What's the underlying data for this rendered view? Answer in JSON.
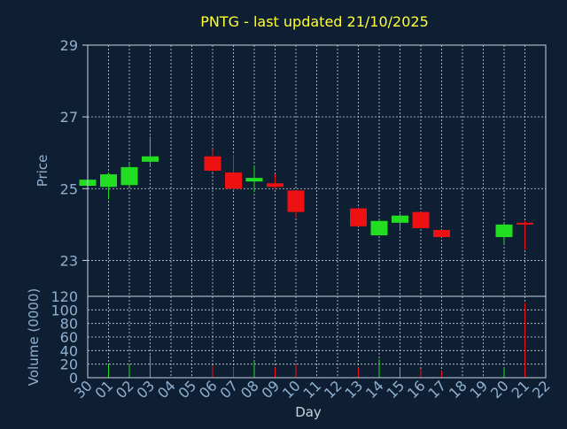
{
  "chart_data": {
    "type": "candlestick",
    "title": "PNTG - last updated 21/10/2025",
    "xlabel": "Day",
    "price_ylabel": "Price",
    "volume_ylabel": "Volume (0000)",
    "x_ticks": [
      "30",
      "01",
      "02",
      "03",
      "04",
      "05",
      "06",
      "07",
      "08",
      "09",
      "10",
      "11",
      "12",
      "13",
      "14",
      "15",
      "16",
      "17",
      "18",
      "19",
      "20",
      "21",
      "22"
    ],
    "price_yticks": [
      23,
      25,
      27,
      29
    ],
    "price_ylim": [
      22,
      29
    ],
    "volume_yticks": [
      0,
      20,
      40,
      60,
      80,
      100,
      120
    ],
    "volume_ylim": [
      0,
      120
    ],
    "grid": true,
    "colors": {
      "background": "#0f1f33",
      "axis": "#c8d3de",
      "tick_label": "#8fb0cf",
      "title": "#ffff33",
      "grid": "#c8d3de",
      "up": "#22dd22",
      "down": "#ee1111"
    },
    "candles": [
      {
        "x": "30",
        "open": 25.08,
        "close": 25.25,
        "high": 25.28,
        "low": 25.05,
        "volume": 0
      },
      {
        "x": "01",
        "open": 25.05,
        "close": 25.4,
        "high": 25.45,
        "low": 24.7,
        "volume": 20
      },
      {
        "x": "02",
        "open": 25.1,
        "close": 25.6,
        "high": 25.72,
        "low": 25.05,
        "volume": 20
      },
      {
        "x": "03",
        "open": 25.75,
        "close": 25.9,
        "high": 26.45,
        "low": 25.6,
        "volume": 33
      },
      {
        "x": "06",
        "open": 25.9,
        "close": 25.5,
        "high": 26.1,
        "low": 25.45,
        "volume": 18
      },
      {
        "x": "07",
        "open": 25.45,
        "close": 25.0,
        "high": 25.95,
        "low": 24.95,
        "volume": 15
      },
      {
        "x": "08",
        "open": 25.2,
        "close": 25.3,
        "high": 25.65,
        "low": 24.9,
        "volume": 25
      },
      {
        "x": "09",
        "open": 25.15,
        "close": 25.05,
        "high": 25.4,
        "low": 25.0,
        "volume": 15
      },
      {
        "x": "10",
        "open": 24.95,
        "close": 24.35,
        "high": 24.95,
        "low": 24.2,
        "volume": 20
      },
      {
        "x": "13",
        "open": 24.45,
        "close": 23.95,
        "high": 24.45,
        "low": 23.95,
        "volume": 15
      },
      {
        "x": "14",
        "open": 23.7,
        "close": 24.1,
        "high": 24.15,
        "low": 23.7,
        "volume": 27
      },
      {
        "x": "15",
        "open": 24.05,
        "close": 24.25,
        "high": 24.3,
        "low": 23.85,
        "volume": 15
      },
      {
        "x": "16",
        "open": 24.35,
        "close": 23.9,
        "high": 24.35,
        "low": 23.9,
        "volume": 13
      },
      {
        "x": "17",
        "open": 23.85,
        "close": 23.65,
        "high": 23.85,
        "low": 23.65,
        "volume": 10
      },
      {
        "x": "20",
        "open": 23.65,
        "close": 24.0,
        "high": 24.05,
        "low": 23.45,
        "volume": 15
      },
      {
        "x": "21",
        "open": 24.05,
        "close": 24.0,
        "high": 24.1,
        "low": 23.3,
        "volume": 110
      }
    ]
  }
}
